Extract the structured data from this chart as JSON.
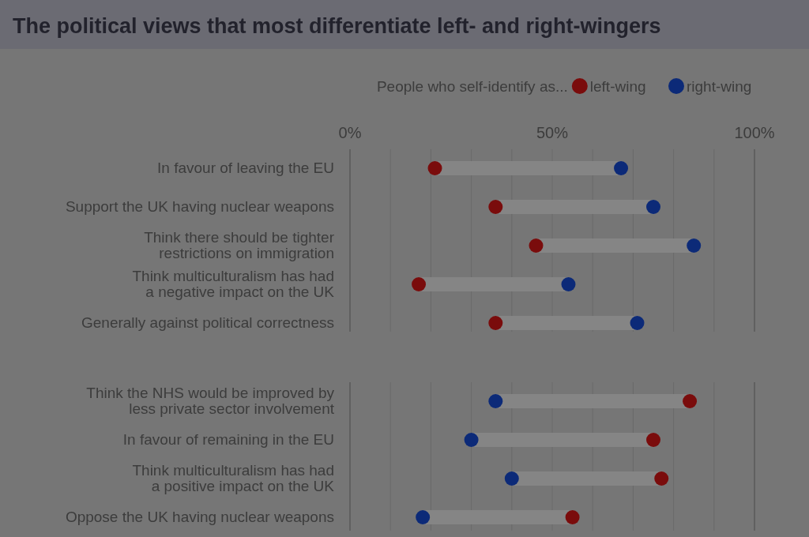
{
  "chart_data": [
    {
      "type": "scatter",
      "orientation": "horizontal",
      "title": "The political views that most differentiate left- and right-wingers",
      "legend_title": "People who self-identify as...",
      "legend": "top right",
      "grid": "x",
      "marker": "circle",
      "categories": [
        "In favour of leaving the EU",
        "Support the UK having nuclear weapons",
        "Think there should be tighter restrictions on immigration",
        "Think multiculturalism has had a negative impact on the UK",
        "Generally against political correctness"
      ],
      "xlim": [
        0,
        100
      ],
      "xticks": [
        {
          "value": 0,
          "label": "0%"
        },
        {
          "value": 10,
          "label": null
        },
        {
          "value": 20,
          "label": null
        },
        {
          "value": 30,
          "label": null
        },
        {
          "value": 40,
          "label": null
        },
        {
          "value": 50,
          "label": "50%"
        },
        {
          "value": 60,
          "label": null
        },
        {
          "value": 70,
          "label": null
        },
        {
          "value": 80,
          "label": null
        },
        {
          "value": 90,
          "label": null
        },
        {
          "value": 100,
          "label": "100%"
        }
      ],
      "series": [
        {
          "type": "bar",
          "color": "#858585",
          "base": [
            21,
            36,
            46,
            17,
            36
          ],
          "values": [
            46,
            39,
            39,
            37,
            35
          ]
        },
        {
          "name": "left-wing",
          "color": "#7a0c0c",
          "values": [
            21,
            36,
            46,
            17,
            36
          ]
        },
        {
          "name": "right-wing",
          "color": "#0c2a78",
          "values": [
            67,
            75,
            85,
            54,
            71
          ]
        }
      ]
    },
    {
      "type": "scatter",
      "orientation": "horizontal",
      "grid": "x",
      "marker": "circle",
      "tick_labels": "y",
      "categories": [
        "Think the NHS would be improved by less private sector involvement",
        "In favour of remaining in the EU",
        "Think multiculturalism has had a positive impact on the UK",
        "Oppose the UK having nuclear weapons"
      ],
      "xlim": [
        0,
        100
      ],
      "xticks": [
        {
          "value": 0,
          "label": null
        },
        {
          "value": 10,
          "label": null
        },
        {
          "value": 20,
          "label": null
        },
        {
          "value": 30,
          "label": null
        },
        {
          "value": 40,
          "label": null
        },
        {
          "value": 50,
          "label": null
        },
        {
          "value": 60,
          "label": null
        },
        {
          "value": 70,
          "label": null
        },
        {
          "value": 80,
          "label": null
        },
        {
          "value": 90,
          "label": null
        },
        {
          "value": 100,
          "label": null
        }
      ],
      "series": [
        {
          "type": "bar",
          "color": "#858585",
          "base": [
            36,
            30,
            40,
            18
          ],
          "values": [
            48,
            45,
            37,
            37
          ]
        },
        {
          "color": "#7a0c0c",
          "values": [
            84,
            75,
            77,
            55
          ]
        },
        {
          "color": "#0c2a78",
          "values": [
            36,
            30,
            40,
            18
          ]
        }
      ]
    }
  ]
}
